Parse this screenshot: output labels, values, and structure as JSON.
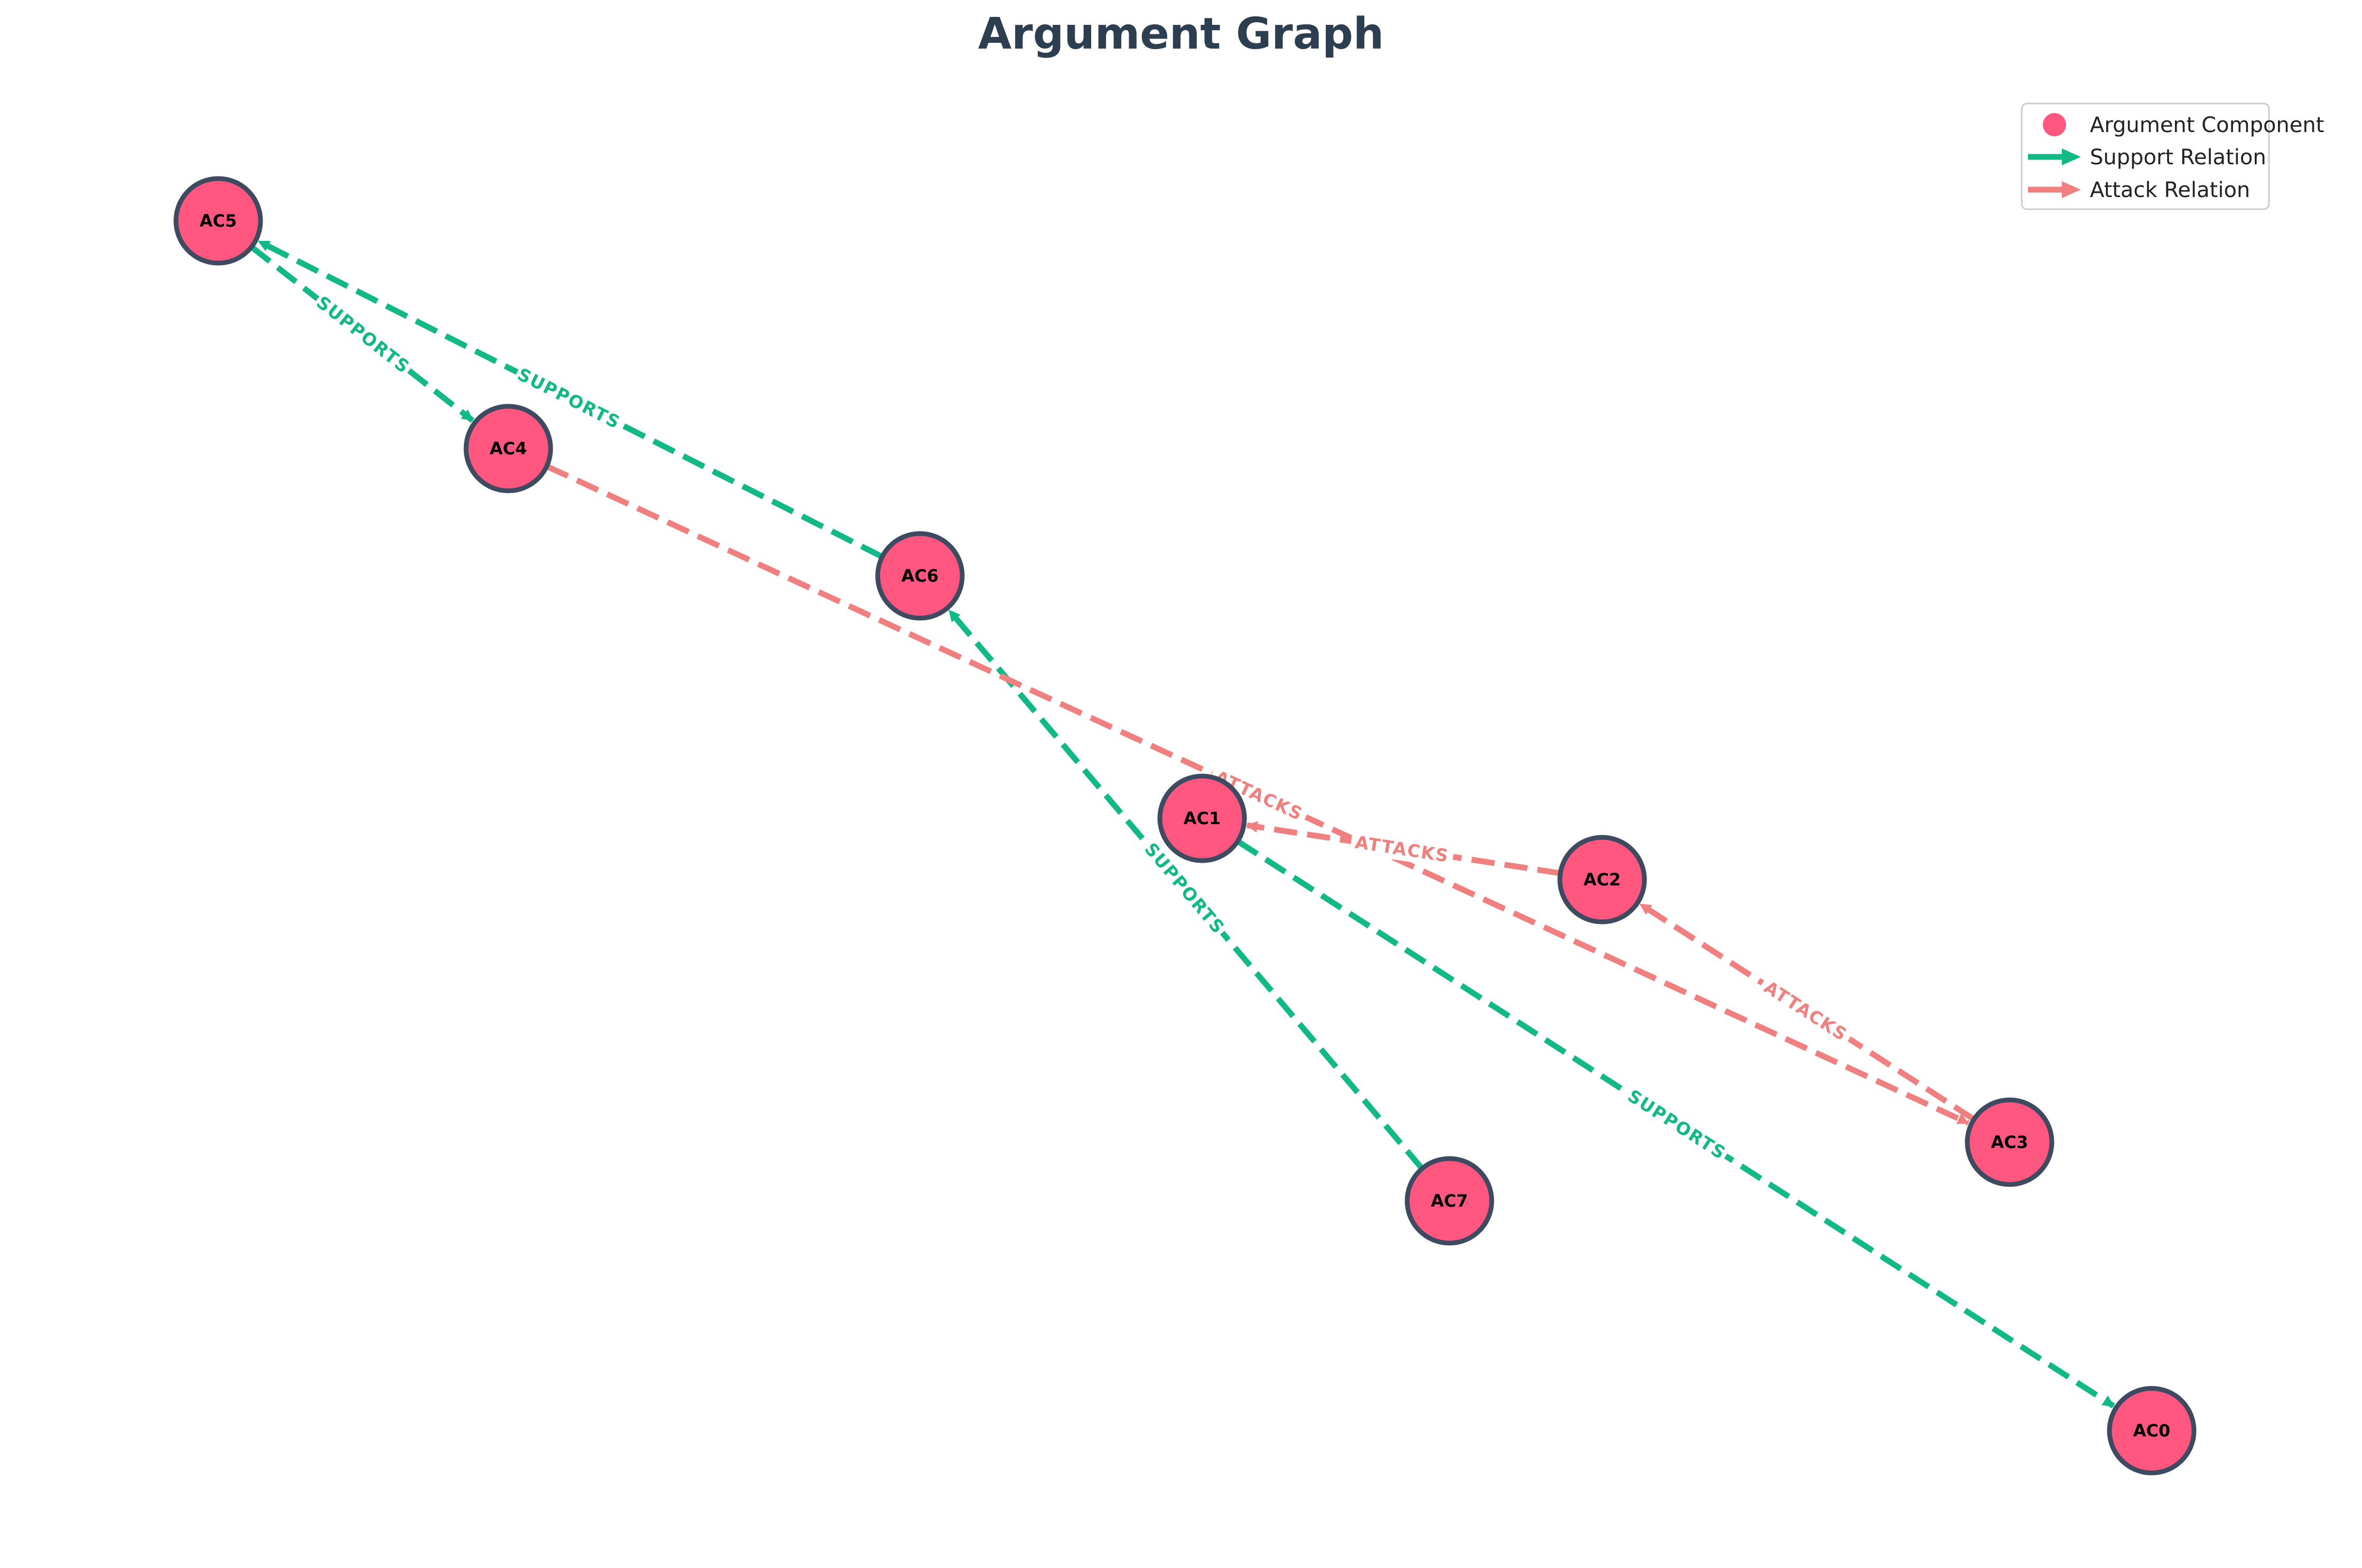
{
  "title": "Argument Graph",
  "colors": {
    "node_fill": "#ff5780",
    "node_stroke": "#3d4a5f",
    "support": "#12b886",
    "attack": "#f08080",
    "title": "#2c3e50"
  },
  "legend": {
    "items": [
      {
        "label": "Argument Component",
        "kind": "node"
      },
      {
        "label": "Support Relation",
        "kind": "support"
      },
      {
        "label": "Attack Relation",
        "kind": "attack"
      }
    ]
  },
  "nodes": [
    {
      "id": "AC0",
      "label": "AC0"
    },
    {
      "id": "AC1",
      "label": "AC1"
    },
    {
      "id": "AC2",
      "label": "AC2"
    },
    {
      "id": "AC3",
      "label": "AC3"
    },
    {
      "id": "AC4",
      "label": "AC4"
    },
    {
      "id": "AC5",
      "label": "AC5"
    },
    {
      "id": "AC6",
      "label": "AC6"
    },
    {
      "id": "AC7",
      "label": "AC7"
    }
  ],
  "edges": [
    {
      "source": "AC1",
      "target": "AC0",
      "type": "support",
      "label": "SUPPORTS"
    },
    {
      "source": "AC7",
      "target": "AC6",
      "type": "support",
      "label": "SUPPORTS"
    },
    {
      "source": "AC6",
      "target": "AC5",
      "type": "support",
      "label": "SUPPORTS"
    },
    {
      "source": "AC5",
      "target": "AC4",
      "type": "support",
      "label": "SUPPORTS"
    },
    {
      "source": "AC4",
      "target": "AC3",
      "type": "attack",
      "label": "ATTACKS"
    },
    {
      "source": "AC2",
      "target": "AC1",
      "type": "attack",
      "label": "ATTACKS"
    },
    {
      "source": "AC3",
      "target": "AC2",
      "type": "attack",
      "label": "ATTACKS"
    }
  ]
}
